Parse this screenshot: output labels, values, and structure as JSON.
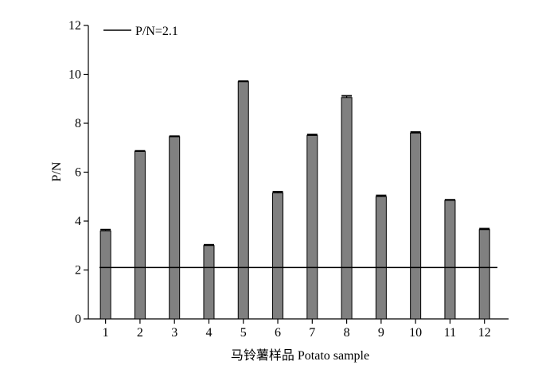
{
  "chart_data": {
    "type": "bar",
    "categories": [
      "1",
      "2",
      "3",
      "4",
      "5",
      "6",
      "7",
      "8",
      "9",
      "10",
      "11",
      "12"
    ],
    "series": [
      {
        "values": [
          3.6,
          6.85,
          7.45,
          3.0,
          9.7,
          5.15,
          7.5,
          9.05,
          5.0,
          7.6,
          4.85,
          3.65
        ],
        "color": "#808080",
        "error": [
          0.05,
          0.02,
          0.02,
          0.03,
          0.02,
          0.05,
          0.04,
          0.07,
          0.05,
          0.04,
          0.02,
          0.04
        ]
      }
    ],
    "reference_line": {
      "y": 2.1,
      "label": "P/N=2.1",
      "color": "#000000"
    },
    "xlabel": "马铃薯样品 Potato sample",
    "ylabel": "P/N",
    "ylim": [
      0,
      12
    ],
    "yticks": [
      0,
      2,
      4,
      6,
      8,
      10,
      12
    ],
    "grid": false,
    "legend_position": "top-left"
  }
}
